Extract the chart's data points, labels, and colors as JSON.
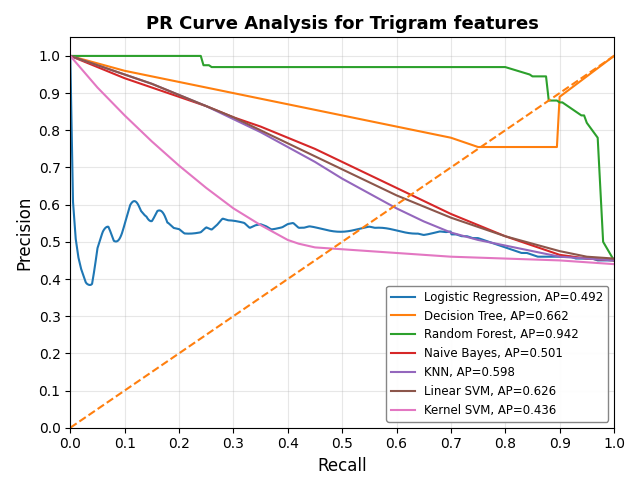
{
  "title": "PR Curve Analysis for Trigram features",
  "xlabel": "Recall",
  "ylabel": "Precision",
  "xlim": [
    0.0,
    1.0
  ],
  "ylim": [
    0.0,
    1.05
  ],
  "legend_entries": [
    {
      "label": "Logistic Regression, AP=0.492",
      "color": "#1f77b4"
    },
    {
      "label": "Decision Tree, AP=0.662",
      "color": "#ff7f0e"
    },
    {
      "label": "Random Forest, AP=0.942",
      "color": "#2ca02c"
    },
    {
      "label": "Naive Bayes, AP=0.501",
      "color": "#d62728"
    },
    {
      "label": "KNN, AP=0.598",
      "color": "#9467bd"
    },
    {
      "label": "Linear SVM, AP=0.626",
      "color": "#8c564b"
    },
    {
      "label": "Kernel SVM, AP=0.436",
      "color": "#e377c2"
    }
  ],
  "diagonal_color": "#ff7f0e",
  "curves": {
    "logistic_regression": {
      "recall": [
        0.0,
        0.005,
        0.01,
        0.015,
        0.02,
        0.03,
        0.04,
        0.05,
        0.06,
        0.07,
        0.08,
        0.09,
        0.1,
        0.11,
        0.12,
        0.13,
        0.14,
        0.15,
        0.16,
        0.17,
        0.18,
        0.19,
        0.2,
        0.21,
        0.22,
        0.23,
        0.24,
        0.25,
        0.26,
        0.27,
        0.28,
        0.29,
        0.3,
        0.31,
        0.32,
        0.33,
        0.34,
        0.35,
        0.36,
        0.37,
        0.38,
        0.39,
        0.4,
        0.41,
        0.42,
        0.43,
        0.44,
        0.45,
        0.46,
        0.47,
        0.48,
        0.49,
        0.5,
        0.51,
        0.52,
        0.53,
        0.54,
        0.55,
        0.56,
        0.57,
        0.58,
        0.59,
        0.6,
        0.61,
        0.62,
        0.63,
        0.64,
        0.65,
        0.66,
        0.67,
        0.68,
        0.69,
        0.7,
        0.71,
        0.72,
        0.73,
        0.74,
        0.75,
        0.76,
        0.77,
        0.78,
        0.79,
        0.8,
        0.81,
        0.82,
        0.83,
        0.84,
        0.85,
        0.86,
        0.87,
        0.88,
        0.89,
        0.9,
        0.91,
        0.92,
        0.93,
        0.94,
        0.95,
        0.96,
        0.97,
        0.98,
        0.99,
        1.0
      ],
      "precision": [
        1.0,
        0.6,
        0.5,
        0.45,
        0.42,
        0.38,
        0.4,
        0.49,
        0.52,
        0.54,
        0.53,
        0.55,
        0.57,
        0.58,
        0.57,
        0.56,
        0.57,
        0.56,
        0.57,
        0.56,
        0.55,
        0.54,
        0.54,
        0.53,
        0.53,
        0.53,
        0.53,
        0.54,
        0.53,
        0.54,
        0.555,
        0.55,
        0.55,
        0.55,
        0.55,
        0.54,
        0.55,
        0.555,
        0.55,
        0.54,
        0.54,
        0.54,
        0.545,
        0.545,
        0.53,
        0.53,
        0.535,
        0.535,
        0.535,
        0.535,
        0.535,
        0.535,
        0.535,
        0.535,
        0.535,
        0.535,
        0.535,
        0.535,
        0.53,
        0.53,
        0.53,
        0.53,
        0.53,
        0.53,
        0.53,
        0.53,
        0.53,
        0.525,
        0.525,
        0.525,
        0.525,
        0.52,
        0.52,
        0.52,
        0.515,
        0.515,
        0.51,
        0.51,
        0.505,
        0.5,
        0.495,
        0.49,
        0.485,
        0.48,
        0.475,
        0.47,
        0.47,
        0.465,
        0.46,
        0.46,
        0.46,
        0.46,
        0.46,
        0.46,
        0.46,
        0.455,
        0.455,
        0.455,
        0.455,
        0.45,
        0.45,
        0.45,
        0.45
      ],
      "color": "#1f77b4",
      "linewidth": 1.5,
      "noisy": true
    },
    "decision_tree": {
      "recall": [
        0.0,
        0.05,
        0.1,
        0.15,
        0.2,
        0.25,
        0.3,
        0.35,
        0.4,
        0.45,
        0.5,
        0.55,
        0.6,
        0.65,
        0.7,
        0.74,
        0.75,
        0.76,
        0.77,
        0.78,
        0.79,
        0.8,
        0.82,
        0.85,
        0.88,
        0.895,
        0.9,
        1.0
      ],
      "precision": [
        1.0,
        0.98,
        0.96,
        0.945,
        0.93,
        0.915,
        0.9,
        0.885,
        0.87,
        0.855,
        0.84,
        0.825,
        0.81,
        0.795,
        0.78,
        0.76,
        0.755,
        0.755,
        0.755,
        0.755,
        0.755,
        0.755,
        0.755,
        0.755,
        0.755,
        0.755,
        0.89,
        1.0
      ],
      "color": "#ff7f0e",
      "linewidth": 1.5
    },
    "random_forest": {
      "recall": [
        0.0,
        0.001,
        0.24,
        0.245,
        0.255,
        0.26,
        0.27,
        0.5,
        0.6,
        0.7,
        0.8,
        0.845,
        0.85,
        0.855,
        0.86,
        0.875,
        0.88,
        0.89,
        0.895,
        0.9,
        0.905,
        0.91,
        0.92,
        0.93,
        0.94,
        0.945,
        0.95,
        0.96,
        0.97,
        0.98,
        1.0
      ],
      "precision": [
        1.0,
        1.0,
        1.0,
        0.975,
        0.975,
        0.97,
        0.97,
        0.97,
        0.97,
        0.97,
        0.97,
        0.95,
        0.945,
        0.945,
        0.945,
        0.945,
        0.88,
        0.88,
        0.88,
        0.875,
        0.875,
        0.87,
        0.86,
        0.85,
        0.84,
        0.84,
        0.82,
        0.8,
        0.78,
        0.5,
        0.45
      ],
      "color": "#2ca02c",
      "linewidth": 1.5
    },
    "naive_bayes": {
      "recall": [
        0.0,
        0.05,
        0.1,
        0.15,
        0.2,
        0.25,
        0.3,
        0.35,
        0.4,
        0.45,
        0.5,
        0.55,
        0.6,
        0.65,
        0.7,
        0.75,
        0.8,
        0.85,
        0.88,
        0.9,
        0.95,
        1.0
      ],
      "precision": [
        1.0,
        0.97,
        0.94,
        0.915,
        0.89,
        0.865,
        0.835,
        0.81,
        0.78,
        0.75,
        0.715,
        0.68,
        0.645,
        0.61,
        0.575,
        0.545,
        0.515,
        0.49,
        0.475,
        0.465,
        0.455,
        0.45
      ],
      "color": "#d62728",
      "linewidth": 1.5
    },
    "knn": {
      "recall": [
        0.0,
        0.05,
        0.1,
        0.15,
        0.2,
        0.25,
        0.3,
        0.35,
        0.4,
        0.45,
        0.5,
        0.55,
        0.6,
        0.65,
        0.7,
        0.75,
        0.8,
        0.85,
        0.9,
        0.95,
        1.0
      ],
      "precision": [
        1.0,
        0.975,
        0.95,
        0.925,
        0.895,
        0.865,
        0.83,
        0.795,
        0.755,
        0.715,
        0.67,
        0.63,
        0.59,
        0.555,
        0.525,
        0.505,
        0.49,
        0.475,
        0.46,
        0.455,
        0.45
      ],
      "color": "#9467bd",
      "linewidth": 1.5
    },
    "linear_svm": {
      "recall": [
        0.0,
        0.05,
        0.1,
        0.15,
        0.2,
        0.25,
        0.3,
        0.35,
        0.4,
        0.45,
        0.5,
        0.55,
        0.6,
        0.65,
        0.7,
        0.75,
        0.8,
        0.85,
        0.9,
        0.95,
        1.0
      ],
      "precision": [
        1.0,
        0.975,
        0.95,
        0.925,
        0.895,
        0.865,
        0.835,
        0.8,
        0.765,
        0.73,
        0.695,
        0.66,
        0.625,
        0.595,
        0.565,
        0.54,
        0.515,
        0.495,
        0.475,
        0.46,
        0.455
      ],
      "color": "#8c564b",
      "linewidth": 1.5
    },
    "kernel_svm": {
      "recall": [
        0.0,
        0.05,
        0.1,
        0.15,
        0.2,
        0.25,
        0.3,
        0.35,
        0.4,
        0.42,
        0.45,
        0.5,
        0.55,
        0.6,
        0.65,
        0.7,
        0.8,
        0.9,
        1.0
      ],
      "precision": [
        1.0,
        0.915,
        0.84,
        0.77,
        0.705,
        0.645,
        0.59,
        0.545,
        0.505,
        0.495,
        0.485,
        0.48,
        0.475,
        0.47,
        0.465,
        0.46,
        0.455,
        0.45,
        0.44
      ],
      "color": "#e377c2",
      "linewidth": 1.5
    }
  }
}
